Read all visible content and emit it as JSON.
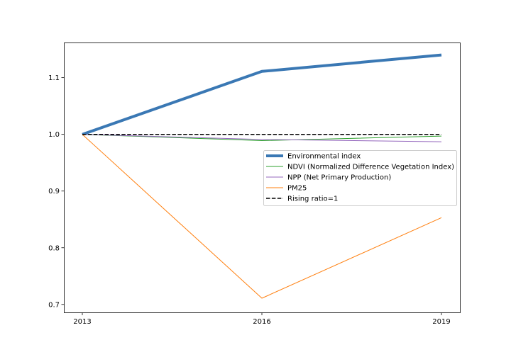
{
  "chart_data": {
    "type": "line",
    "title": "",
    "xlabel": "",
    "ylabel": "",
    "x": [
      "2013",
      "2016",
      "2019"
    ],
    "ylim": [
      0.686,
      1.162
    ],
    "yticks": [
      0.7,
      0.8,
      0.9,
      1.0,
      1.1
    ],
    "ytick_labels": [
      "0.7",
      "0.8",
      "0.9",
      "1.0",
      "1.1"
    ],
    "grid": false,
    "legend_position": "center-right",
    "series": [
      {
        "name": "Environmental index",
        "values": [
          1.0,
          1.111,
          1.14
        ],
        "color": "#3a78b4",
        "style": "solid",
        "weight": "thick"
      },
      {
        "name": "NDVI (Normalized Difference Vegetation Index)",
        "values": [
          1.0,
          0.989,
          0.997
        ],
        "color": "#2ca02c",
        "style": "solid",
        "weight": "thin"
      },
      {
        "name": "NPP (Net Primary Production)",
        "values": [
          1.0,
          0.991,
          0.987
        ],
        "color": "#9467bd",
        "style": "solid",
        "weight": "thin"
      },
      {
        "name": "PM25",
        "values": [
          1.0,
          0.711,
          0.853
        ],
        "color": "#ff7f0e",
        "style": "solid",
        "weight": "thin"
      },
      {
        "name": "Rising ratio=1",
        "values": [
          1.0,
          1.0,
          1.0
        ],
        "color": "#000000",
        "style": "dashed",
        "weight": "medium"
      }
    ]
  }
}
